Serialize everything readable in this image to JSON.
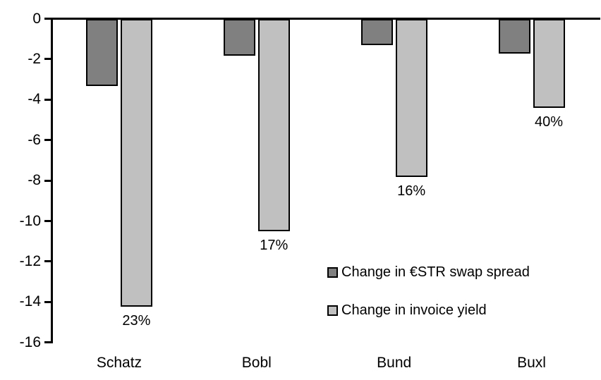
{
  "chart_data": {
    "type": "bar",
    "orientation": "vertical-negative",
    "categories": [
      "Schatz",
      "Bobl",
      "Bund",
      "Buxl"
    ],
    "series": [
      {
        "name": "Change in €STR swap spread",
        "color": "#808080",
        "values": [
          -3.3,
          -1.8,
          -1.3,
          -1.7
        ]
      },
      {
        "name": "Change in invoice yield",
        "color": "#C0C0C0",
        "values": [
          -14.2,
          -10.5,
          -7.8,
          -4.4
        ],
        "point_labels": [
          "23%",
          "17%",
          "16%",
          "40%"
        ]
      }
    ],
    "title": "",
    "xlabel": "",
    "ylabel": "",
    "ylim": [
      -16,
      0
    ],
    "ytick_step": 2,
    "yticks": [
      "0",
      "-2",
      "-4",
      "-6",
      "-8",
      "-10",
      "-12",
      "-14",
      "-16"
    ],
    "grid": false,
    "legend_position": "inside-center-right",
    "bar_border_color": "#000000",
    "axis_color": "#000000",
    "background_color": "#FFFFFF"
  }
}
